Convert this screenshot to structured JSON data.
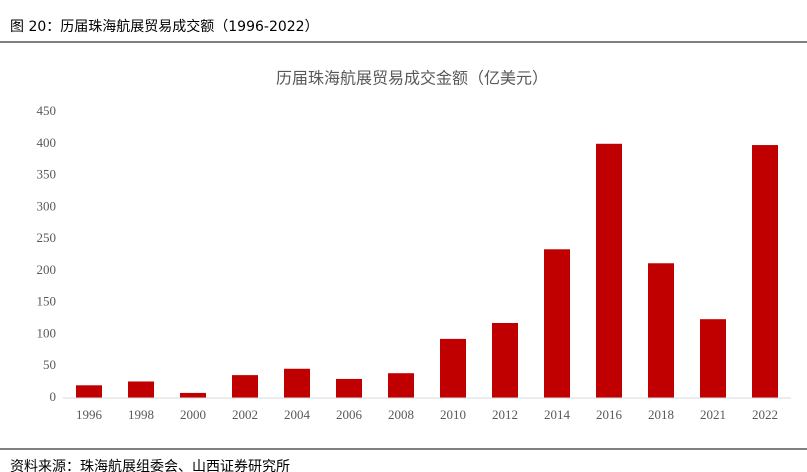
{
  "header": "图 20：历届珠海航展贸易成交额（1996-2022）",
  "source": "资料来源：珠海航展组委会、山西证券研究所",
  "chart_data": {
    "type": "bar",
    "title": "历届珠海航展贸易成交金额（亿美元）",
    "categories": [
      "1996",
      "1998",
      "2000",
      "2002",
      "2004",
      "2006",
      "2008",
      "2010",
      "2012",
      "2014",
      "2016",
      "2018",
      "2021",
      "2022"
    ],
    "values": [
      20,
      26,
      8,
      36,
      46,
      30,
      39,
      93,
      118,
      234,
      400,
      212,
      124,
      398
    ],
    "color": "#c00000",
    "ylim": [
      0,
      450
    ],
    "yticks": [
      0,
      50,
      100,
      150,
      200,
      250,
      300,
      350,
      400,
      450
    ],
    "grid": false
  }
}
